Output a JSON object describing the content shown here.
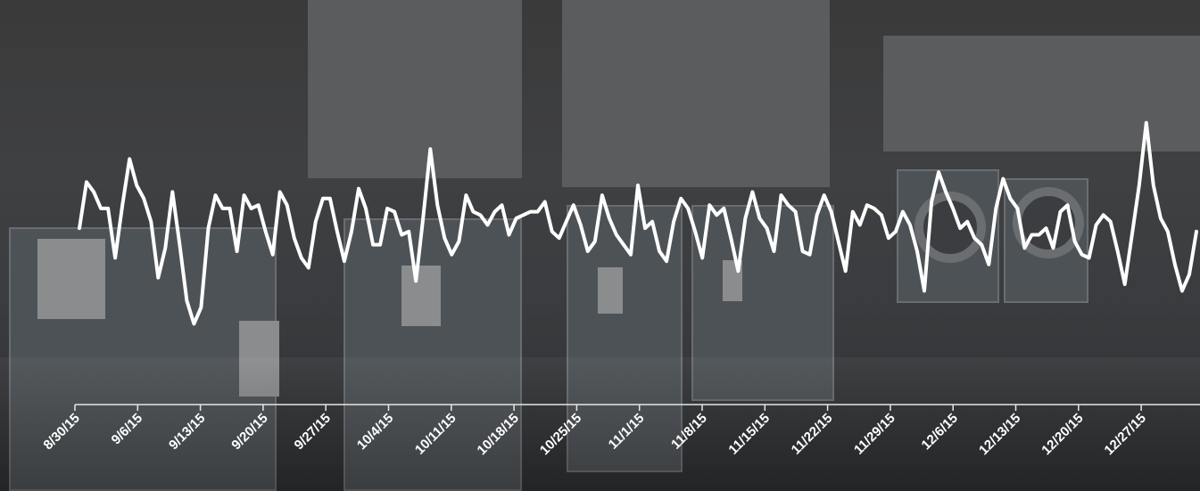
{
  "chart_data": {
    "type": "line",
    "title": "",
    "xlabel": "",
    "ylabel": "",
    "grid": false,
    "legend": "none",
    "line_color": "#ffffff",
    "axis_color": "#e6e6e6",
    "tick_labels": [
      "8/30/15",
      "9/6/15",
      "9/13/15",
      "9/20/15",
      "9/27/15",
      "10/4/15",
      "10/11/15",
      "10/18/15",
      "10/25/15",
      "11/1/15",
      "11/8/15",
      "11/15/15",
      "11/22/15",
      "11/29/15",
      "12/6/15",
      "12/13/15",
      "12/20/15",
      "12/27/15"
    ],
    "x_start": "8/30/15",
    "x_end": "1/3/16",
    "ylim": [
      0,
      100
    ],
    "series": [
      {
        "values": [
          47,
          61,
          58,
          53,
          53,
          38,
          54,
          68,
          60,
          56,
          49,
          32,
          41,
          58,
          42,
          25,
          18,
          23,
          47,
          57,
          53,
          53,
          40,
          57,
          53,
          54,
          46,
          39,
          58,
          54,
          44,
          38,
          35,
          49,
          56,
          56,
          46,
          37,
          46,
          59,
          53,
          42,
          42,
          53,
          52,
          45,
          46,
          31,
          50,
          71,
          54,
          44,
          39,
          43,
          57,
          52,
          51,
          48,
          52,
          54,
          45,
          50,
          51,
          52,
          52,
          55,
          46,
          44,
          49,
          54,
          48,
          40,
          43,
          57,
          50,
          45,
          42,
          39,
          60,
          47,
          49,
          40,
          37,
          49,
          56,
          53,
          46,
          38,
          54,
          51,
          53,
          44,
          34,
          50,
          58,
          50,
          47,
          40,
          57,
          54,
          52,
          40,
          39,
          51,
          57,
          52,
          43,
          34,
          52,
          48,
          54,
          53,
          51,
          44,
          46,
          52,
          48,
          40,
          28,
          55,
          64,
          58,
          53,
          47,
          49,
          44,
          42,
          36,
          53,
          62,
          56,
          53,
          41,
          45,
          45,
          47,
          41,
          52,
          54,
          43,
          39,
          38,
          48,
          51,
          49,
          40,
          30,
          45,
          60,
          79,
          60,
          50,
          46,
          36,
          28,
          33,
          46
        ]
      }
    ]
  }
}
